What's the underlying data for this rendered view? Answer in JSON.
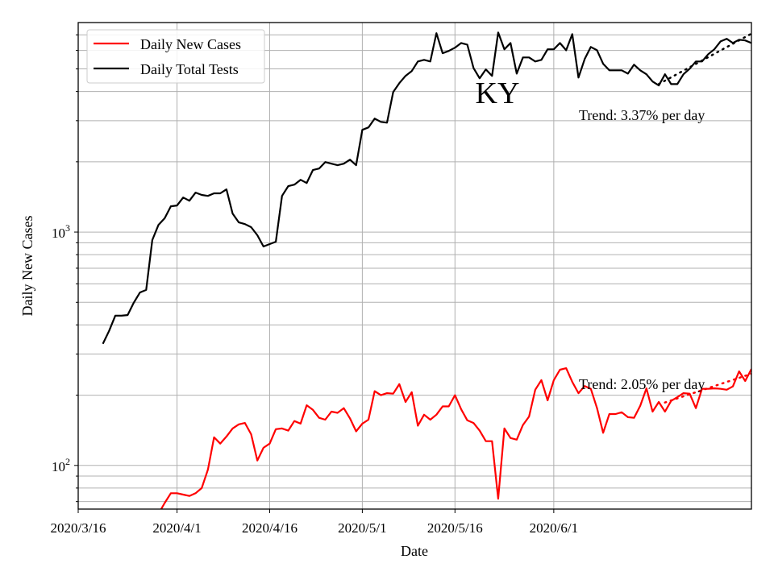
{
  "chart_data": {
    "type": "line",
    "title": "KY",
    "xlabel": "Date",
    "ylabel": "Daily New Cases",
    "y_scale": "log",
    "ylim": [
      65,
      7900
    ],
    "xlim": [
      "2020-03-16",
      "2020-07-03"
    ],
    "grid": true,
    "legend_position": "top-left",
    "x_ticks": [
      {
        "date": "2020-03-16",
        "label": "2020/3/16"
      },
      {
        "date": "2020-04-01",
        "label": "2020/4/1"
      },
      {
        "date": "2020-04-16",
        "label": "2020/4/16"
      },
      {
        "date": "2020-05-01",
        "label": "2020/5/1"
      },
      {
        "date": "2020-05-16",
        "label": "2020/5/16"
      },
      {
        "date": "2020-06-01",
        "label": "2020/6/1"
      }
    ],
    "y_ticks": [
      {
        "value": 100,
        "label_base": "10",
        "label_exp": "2"
      },
      {
        "value": 1000,
        "label_base": "10",
        "label_exp": "3"
      }
    ],
    "x_start": "2020-03-20",
    "series": [
      {
        "name": "Daily New Cases",
        "color": "#ff0000",
        "values": [
          null,
          null,
          null,
          null,
          null,
          null,
          null,
          null,
          null,
          62,
          69,
          76,
          76,
          75,
          74,
          76,
          80,
          96,
          132,
          124,
          133,
          144,
          150,
          152,
          136,
          105,
          119,
          124,
          143,
          144,
          141,
          155,
          151,
          181,
          173,
          160,
          157,
          170,
          168,
          176,
          159,
          140,
          151,
          157,
          208,
          200,
          204,
          203,
          223,
          187,
          206,
          148,
          165,
          157,
          165,
          179,
          179,
          200,
          174,
          156,
          152,
          141,
          127,
          127,
          72,
          144,
          131,
          129,
          149,
          162,
          211,
          232,
          190,
          232,
          257,
          261,
          228,
          204,
          219,
          213,
          176,
          138,
          166,
          166,
          169,
          161,
          160,
          180,
          214,
          170,
          187,
          170,
          189,
          196,
          204,
          203,
          176,
          213,
          213,
          214,
          213,
          211,
          218,
          253,
          230,
          259
        ]
      },
      {
        "name": "Daily Total Tests",
        "color": "#000000",
        "values": [
          332,
          377,
          438,
          438,
          441,
          498,
          551,
          565,
          924,
          1074,
          1145,
          1289,
          1300,
          1406,
          1362,
          1476,
          1442,
          1429,
          1465,
          1465,
          1523,
          1200,
          1100,
          1082,
          1049,
          969,
          867,
          888,
          909,
          1429,
          1573,
          1596,
          1675,
          1622,
          1844,
          1872,
          1995,
          1963,
          1933,
          1963,
          2043,
          1933,
          2740,
          2806,
          3063,
          2966,
          2942,
          3981,
          4345,
          4667,
          4895,
          5383,
          5470,
          5383,
          7112,
          5834,
          5970,
          6165,
          6457,
          6353,
          5047,
          4557,
          4977,
          4667,
          7163,
          6067,
          6457,
          4775,
          5600,
          5600,
          5383,
          5470,
          6067,
          6067,
          6457,
          6012,
          7047,
          4592,
          5510,
          6210,
          6012,
          5260,
          4932,
          4932,
          4932,
          4775,
          5212,
          4932,
          4742,
          4416,
          4246,
          4742,
          4306,
          4306,
          4742,
          5012,
          5383,
          5383,
          5781,
          6067,
          6561,
          6730,
          6457,
          6668,
          6622,
          6457
        ]
      }
    ],
    "trends": [
      {
        "series": "Daily Total Tests",
        "label": "Trend: 3.37% per day",
        "rate_pct_per_day": 3.37,
        "start": "2020-06-18",
        "end": "2020-07-03",
        "start_value": 4306,
        "color": "#000000"
      },
      {
        "series": "Daily New Cases",
        "label": "Trend: 2.05% per day",
        "rate_pct_per_day": 2.05,
        "start": "2020-06-19",
        "end": "2020-07-03",
        "start_value": 186,
        "color": "#ff0000"
      }
    ]
  }
}
